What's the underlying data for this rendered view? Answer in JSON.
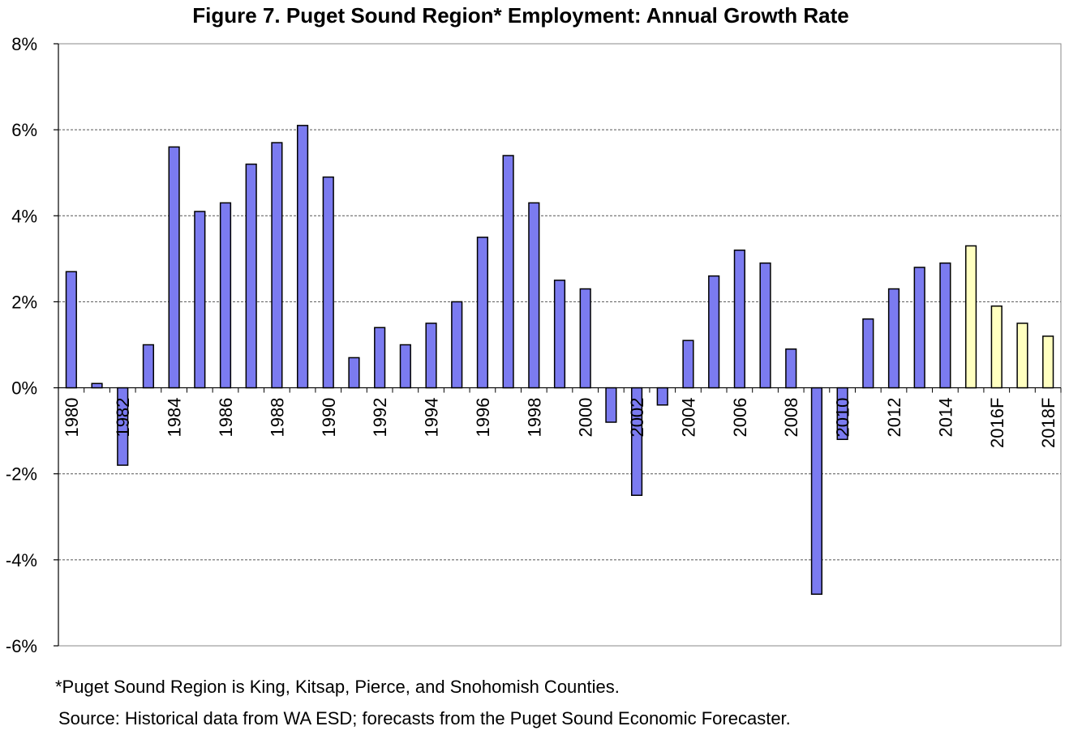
{
  "chart_data": {
    "type": "bar",
    "title": "Figure 7.  Puget Sound Region* Employment: Annual Growth Rate",
    "categories": [
      "1980",
      "1981",
      "1982",
      "1983",
      "1984",
      "1985",
      "1986",
      "1987",
      "1988",
      "1989",
      "1990",
      "1991",
      "1992",
      "1993",
      "1994",
      "1995",
      "1996",
      "1997",
      "1998",
      "1999",
      "2000",
      "2001",
      "2002",
      "2003",
      "2004",
      "2005",
      "2006",
      "2007",
      "2008",
      "2009",
      "2010",
      "2011",
      "2012",
      "2013",
      "2014",
      "2015",
      "2016F",
      "2017F",
      "2018F"
    ],
    "tick_labels": [
      "1980",
      "",
      "1982",
      "",
      "1984",
      "",
      "1986",
      "",
      "1988",
      "",
      "1990",
      "",
      "1992",
      "",
      "1994",
      "",
      "1996",
      "",
      "1998",
      "",
      "2000",
      "",
      "2002",
      "",
      "2004",
      "",
      "2006",
      "",
      "2008",
      "",
      "2010",
      "",
      "2012",
      "",
      "2014",
      "",
      "2016F",
      "",
      "2018F"
    ],
    "series": [
      {
        "values": [
          2.7,
          0.1,
          -1.8,
          1.0,
          5.6,
          4.1,
          4.3,
          5.2,
          5.7,
          6.1,
          4.9,
          0.7,
          1.4,
          1.0,
          1.5,
          2.0,
          3.5,
          5.4,
          4.3,
          2.5,
          2.3,
          -0.8,
          -2.5,
          -0.4,
          1.1,
          2.6,
          3.2,
          2.9,
          0.9,
          -4.8,
          -1.2,
          1.6,
          2.3,
          2.8,
          2.9,
          3.3,
          1.9,
          1.5,
          1.2
        ],
        "color": "#7b7bf0",
        "forecast_color": "#ffffc0",
        "forecast_start_index": 35
      }
    ],
    "ylim": [
      -6,
      8
    ],
    "yticks": [
      -6,
      -4,
      -2,
      0,
      2,
      4,
      6,
      8
    ],
    "ytick_format": "percent",
    "xlabel": "",
    "ylabel": "",
    "grid": true
  },
  "footnotes": {
    "definition": "*Puget Sound Region is King, Kitsap, Pierce, and Snohomish Counties.",
    "source": "Source: Historical data from WA ESD; forecasts from the Puget Sound Economic Forecaster."
  }
}
